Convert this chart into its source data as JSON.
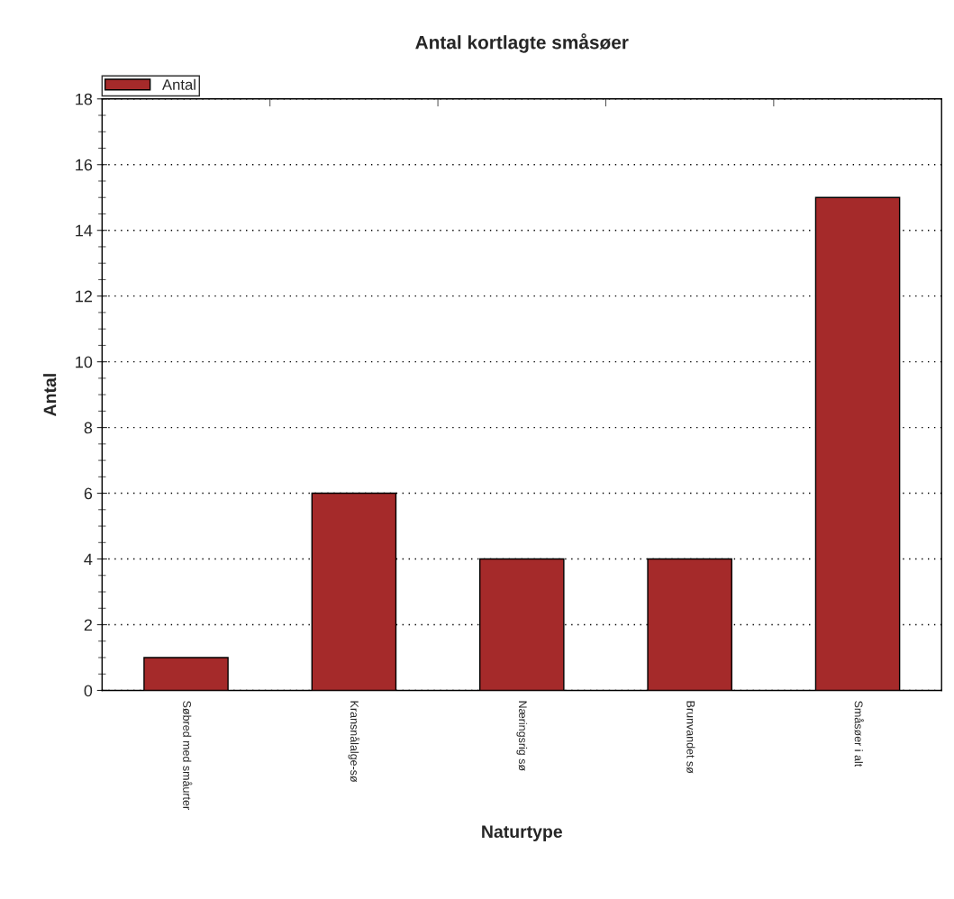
{
  "chart_data": {
    "type": "bar",
    "title": "Antal kortlagte småsøer",
    "xlabel": "Naturtype",
    "ylabel": "Antal",
    "categories": [
      "Søbred med småurter",
      "Kransnålalge-sø",
      "Næringsrig sø",
      "Brunvandet sø",
      "Småsøer i alt"
    ],
    "series": [
      {
        "name": "Antal",
        "color": "#a52a2a",
        "values": [
          1,
          6,
          4,
          4,
          15
        ]
      }
    ],
    "ylim": [
      0,
      18
    ],
    "yticks": [
      0,
      2,
      4,
      6,
      8,
      10,
      12,
      14,
      16,
      18
    ],
    "grid": "y",
    "legend": "top left"
  }
}
